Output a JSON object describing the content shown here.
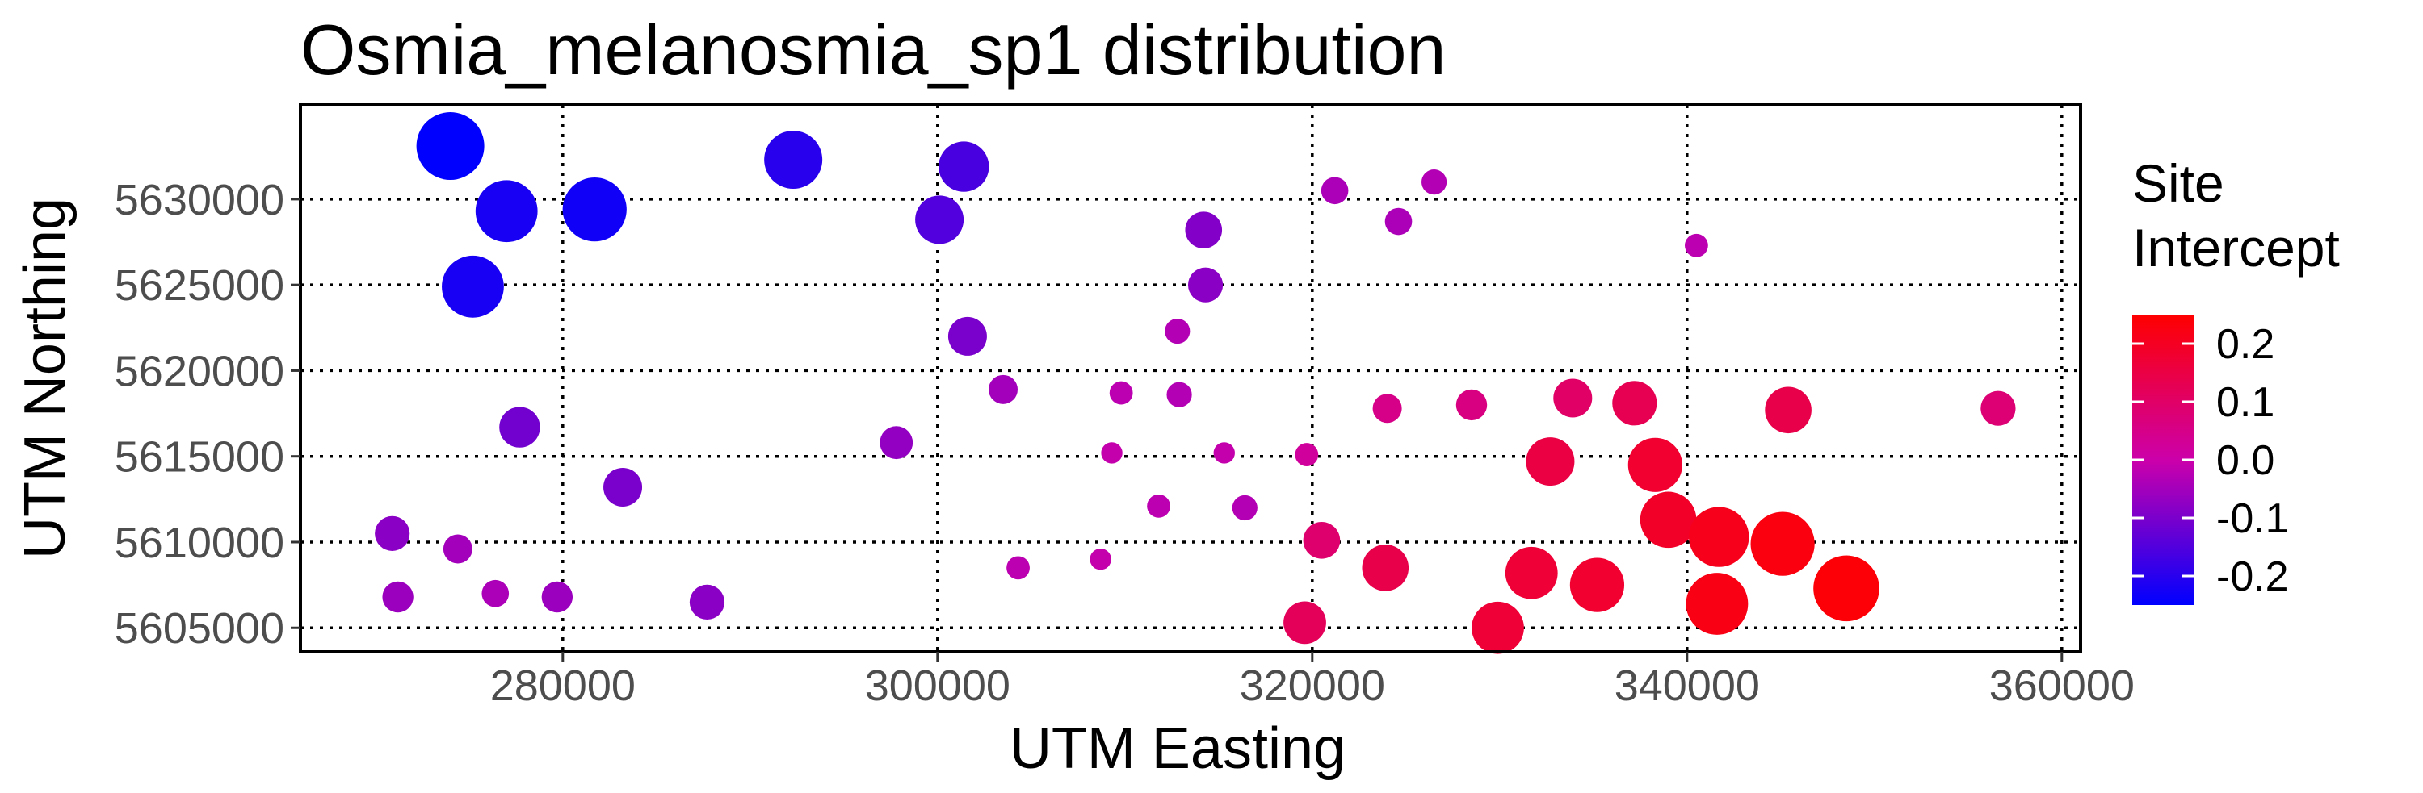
{
  "chart_data": {
    "type": "scatter",
    "title": "Osmia_melanosmia_sp1 distribution",
    "xlabel": "UTM Easting",
    "ylabel": "UTM Northing",
    "xlim": [
      266000,
      361000
    ],
    "ylim": [
      5603600,
      5635500
    ],
    "x_ticks": [
      280000,
      300000,
      320000,
      340000,
      360000
    ],
    "x_tick_labels": [
      "280000",
      "300000",
      "320000",
      "340000",
      "360000"
    ],
    "y_ticks": [
      5605000,
      5610000,
      5615000,
      5620000,
      5625000,
      5630000
    ],
    "y_tick_labels": [
      "5605000",
      "5610000",
      "5615000",
      "5620000",
      "5625000",
      "5630000"
    ],
    "grid": true,
    "grid_style": "dotted",
    "legend": {
      "title_lines": [
        "Site",
        "Intercept"
      ],
      "placement": "right",
      "range": [
        -0.25,
        0.25
      ],
      "ticks": [
        0.2,
        0.1,
        0.0,
        -0.1,
        -0.2
      ],
      "tick_labels": [
        "0.2",
        "0.1",
        "0.0",
        "-0.1",
        "-0.2"
      ],
      "low_color": "#0000ff",
      "mid_color": "#cc00aa",
      "high_color": "#ff0000"
    },
    "points": [
      {
        "x": 274000,
        "y": 5633100,
        "v": -0.25
      },
      {
        "x": 277000,
        "y": 5629300,
        "v": -0.22
      },
      {
        "x": 281700,
        "y": 5629400,
        "v": -0.23
      },
      {
        "x": 275200,
        "y": 5624900,
        "v": -0.22
      },
      {
        "x": 292300,
        "y": 5632300,
        "v": -0.2
      },
      {
        "x": 301400,
        "y": 5631900,
        "v": -0.16
      },
      {
        "x": 300100,
        "y": 5628800,
        "v": -0.15
      },
      {
        "x": 314200,
        "y": 5628200,
        "v": -0.09
      },
      {
        "x": 314300,
        "y": 5625000,
        "v": -0.08
      },
      {
        "x": 301600,
        "y": 5622000,
        "v": -0.1
      },
      {
        "x": 312800,
        "y": 5622300,
        "v": -0.03
      },
      {
        "x": 321200,
        "y": 5630500,
        "v": -0.04
      },
      {
        "x": 326500,
        "y": 5631000,
        "v": -0.03
      },
      {
        "x": 324600,
        "y": 5628700,
        "v": -0.04
      },
      {
        "x": 340500,
        "y": 5627300,
        "v": -0.02
      },
      {
        "x": 303500,
        "y": 5618900,
        "v": -0.05
      },
      {
        "x": 309800,
        "y": 5618700,
        "v": -0.02
      },
      {
        "x": 312900,
        "y": 5618600,
        "v": -0.03
      },
      {
        "x": 277700,
        "y": 5616700,
        "v": -0.11
      },
      {
        "x": 297800,
        "y": 5615800,
        "v": -0.07
      },
      {
        "x": 283200,
        "y": 5613200,
        "v": -0.1
      },
      {
        "x": 309300,
        "y": 5615200,
        "v": -0.01
      },
      {
        "x": 315300,
        "y": 5615200,
        "v": -0.01
      },
      {
        "x": 319700,
        "y": 5615100,
        "v": 0.02
      },
      {
        "x": 311800,
        "y": 5612100,
        "v": -0.02
      },
      {
        "x": 316400,
        "y": 5612000,
        "v": -0.03
      },
      {
        "x": 270900,
        "y": 5610500,
        "v": -0.08
      },
      {
        "x": 274400,
        "y": 5609600,
        "v": -0.05
      },
      {
        "x": 271200,
        "y": 5606800,
        "v": -0.06
      },
      {
        "x": 276400,
        "y": 5607000,
        "v": -0.04
      },
      {
        "x": 279700,
        "y": 5606800,
        "v": -0.06
      },
      {
        "x": 287700,
        "y": 5606500,
        "v": -0.08
      },
      {
        "x": 304300,
        "y": 5608500,
        "v": -0.02
      },
      {
        "x": 308700,
        "y": 5609000,
        "v": -0.01
      },
      {
        "x": 320500,
        "y": 5610100,
        "v": 0.09
      },
      {
        "x": 324000,
        "y": 5617800,
        "v": 0.05
      },
      {
        "x": 328500,
        "y": 5618000,
        "v": 0.06
      },
      {
        "x": 333900,
        "y": 5618400,
        "v": 0.1
      },
      {
        "x": 337200,
        "y": 5618100,
        "v": 0.13
      },
      {
        "x": 345400,
        "y": 5617700,
        "v": 0.14
      },
      {
        "x": 356600,
        "y": 5617800,
        "v": 0.08
      },
      {
        "x": 332700,
        "y": 5614700,
        "v": 0.15
      },
      {
        "x": 338300,
        "y": 5614500,
        "v": 0.18
      },
      {
        "x": 339000,
        "y": 5611300,
        "v": 0.19
      },
      {
        "x": 341700,
        "y": 5610300,
        "v": 0.21
      },
      {
        "x": 345100,
        "y": 5609900,
        "v": 0.23
      },
      {
        "x": 323900,
        "y": 5608500,
        "v": 0.14
      },
      {
        "x": 331700,
        "y": 5608200,
        "v": 0.17
      },
      {
        "x": 335200,
        "y": 5607500,
        "v": 0.18
      },
      {
        "x": 341600,
        "y": 5606400,
        "v": 0.22
      },
      {
        "x": 348500,
        "y": 5607300,
        "v": 0.24
      },
      {
        "x": 319600,
        "y": 5605300,
        "v": 0.12
      },
      {
        "x": 329900,
        "y": 5605000,
        "v": 0.17
      }
    ]
  }
}
